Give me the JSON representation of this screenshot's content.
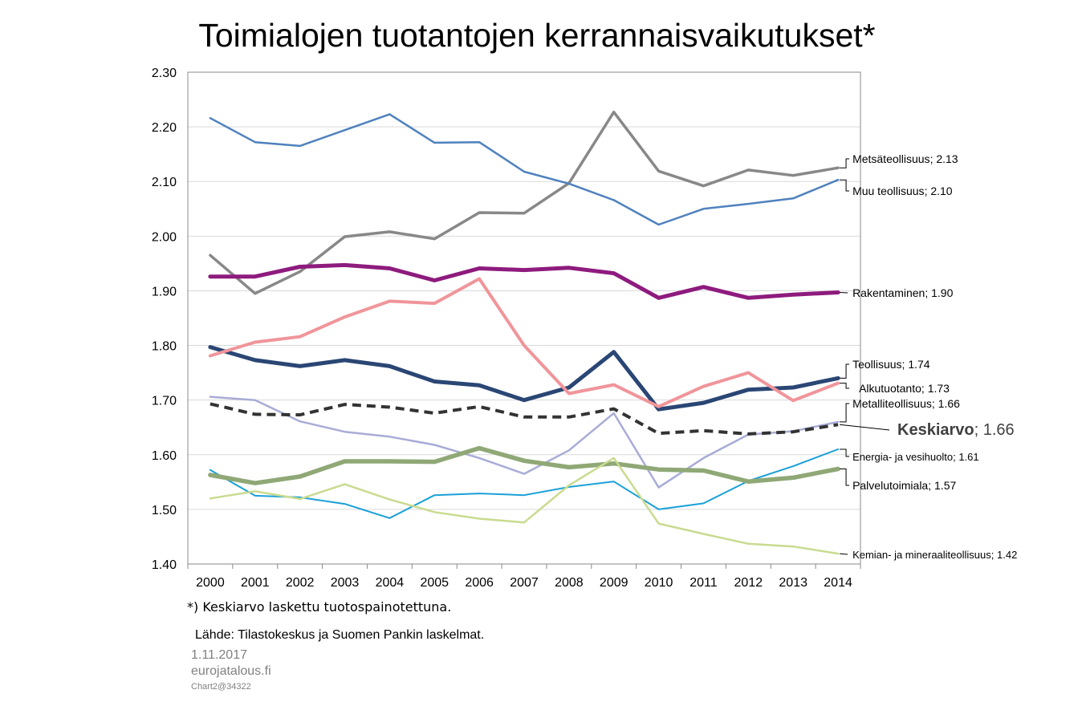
{
  "chart_data": {
    "type": "line",
    "title": "Toimialojen tuotantojen kerrannaisvaikutukset*",
    "xlabel": "",
    "ylabel": "",
    "ylim": [
      1.4,
      2.3
    ],
    "yticks": [
      "1.40",
      "1.50",
      "1.60",
      "1.70",
      "1.80",
      "1.90",
      "2.00",
      "2.10",
      "2.20",
      "2.30"
    ],
    "grid": true,
    "legend": "direct labels at right end of lines",
    "x": [
      "2000",
      "2001",
      "2002",
      "2003",
      "2004",
      "2005",
      "2006",
      "2007",
      "2008",
      "2009",
      "2010",
      "2011",
      "2012",
      "2013",
      "2014"
    ],
    "series": [
      {
        "name": "Metsäteollisuus",
        "end_value": "2.13",
        "color": "#888888",
        "width": 3.5,
        "dash": "",
        "label_class": "lbl",
        "values": [
          1.965,
          1.895,
          1.935,
          1.999,
          2.008,
          1.995,
          2.043,
          2.042,
          2.097,
          2.227,
          2.119,
          2.092,
          2.121,
          2.111,
          2.125
        ]
      },
      {
        "name": "Muu teollisuus",
        "end_value": "2.10",
        "color": "#4f81bd",
        "width": 2.5,
        "dash": "",
        "label_class": "lbl",
        "values": [
          2.216,
          2.172,
          2.165,
          2.194,
          2.223,
          2.171,
          2.172,
          2.118,
          2.096,
          2.066,
          2.021,
          2.05,
          2.059,
          2.069,
          2.103
        ]
      },
      {
        "name": "Rakentaminen",
        "end_value": "1.90",
        "color": "#8e1b7e",
        "width": 5,
        "dash": "",
        "label_class": "lbl",
        "values": [
          1.926,
          1.926,
          1.944,
          1.947,
          1.941,
          1.919,
          1.941,
          1.938,
          1.942,
          1.932,
          1.887,
          1.907,
          1.887,
          1.893,
          1.897
        ]
      },
      {
        "name": "Teollisuus",
        "end_value": "1.74",
        "color": "#2a4674",
        "width": 5,
        "dash": "",
        "label_class": "lbl",
        "values": [
          1.797,
          1.773,
          1.762,
          1.773,
          1.762,
          1.734,
          1.727,
          1.7,
          1.723,
          1.788,
          1.683,
          1.695,
          1.719,
          1.723,
          1.74
        ]
      },
      {
        "name": "Alkutuotanto",
        "end_value": "1.73",
        "color": "#f0959a",
        "width": 4,
        "dash": "",
        "label_class": "lbl",
        "values": [
          1.781,
          1.806,
          1.816,
          1.852,
          1.881,
          1.877,
          1.922,
          1.8,
          1.712,
          1.728,
          1.688,
          1.725,
          1.75,
          1.699,
          1.731
        ]
      },
      {
        "name": "Metalliteollisuus",
        "end_value": "1.66",
        "color": "#a8acd6",
        "width": 2.5,
        "dash": "",
        "label_class": "lbl",
        "values": [
          1.706,
          1.7,
          1.661,
          1.642,
          1.633,
          1.618,
          1.594,
          1.565,
          1.608,
          1.676,
          1.54,
          1.594,
          1.637,
          1.643,
          1.66
        ]
      },
      {
        "name": "Keskiarvo",
        "end_value": "1.66",
        "color": "#333333",
        "width": 4,
        "dash": "11,7",
        "label_class": "lbl-big",
        "values": [
          1.693,
          1.674,
          1.673,
          1.692,
          1.687,
          1.676,
          1.688,
          1.669,
          1.669,
          1.684,
          1.639,
          1.644,
          1.638,
          1.642,
          1.655
        ]
      },
      {
        "name": "Energia- ja vesihuolto",
        "end_value": "1.61",
        "color": "#1aa0d8",
        "width": 2,
        "dash": "",
        "label_class": "lbl-small",
        "values": [
          1.572,
          1.525,
          1.522,
          1.51,
          1.484,
          1.526,
          1.529,
          1.526,
          1.541,
          1.551,
          1.5,
          1.511,
          1.552,
          1.579,
          1.61
        ]
      },
      {
        "name": "Palvelutoimiala",
        "end_value": "1.57",
        "color": "#8fa876",
        "width": 5.5,
        "dash": "",
        "label_class": "lbl",
        "values": [
          1.563,
          1.548,
          1.56,
          1.588,
          1.588,
          1.587,
          1.612,
          1.589,
          1.577,
          1.584,
          1.573,
          1.571,
          1.551,
          1.558,
          1.574
        ]
      },
      {
        "name": "Kemian- ja mineraaliteollisuus",
        "end_value": "1.42",
        "color": "#c9db8f",
        "width": 2.5,
        "dash": "",
        "label_class": "lbl-small",
        "values": [
          1.52,
          1.533,
          1.519,
          1.546,
          1.518,
          1.495,
          1.483,
          1.476,
          1.544,
          1.594,
          1.474,
          1.455,
          1.437,
          1.432,
          1.419
        ]
      }
    ]
  },
  "footnote": "*) Keskiarvo laskettu tuotospainotettuna.",
  "source": "Lähde: Tilastokeskus ja Suomen Pankin laskelmat.",
  "date": "1.11.2017",
  "site": "eurojatalous.fi",
  "code": "Chart2@34322"
}
